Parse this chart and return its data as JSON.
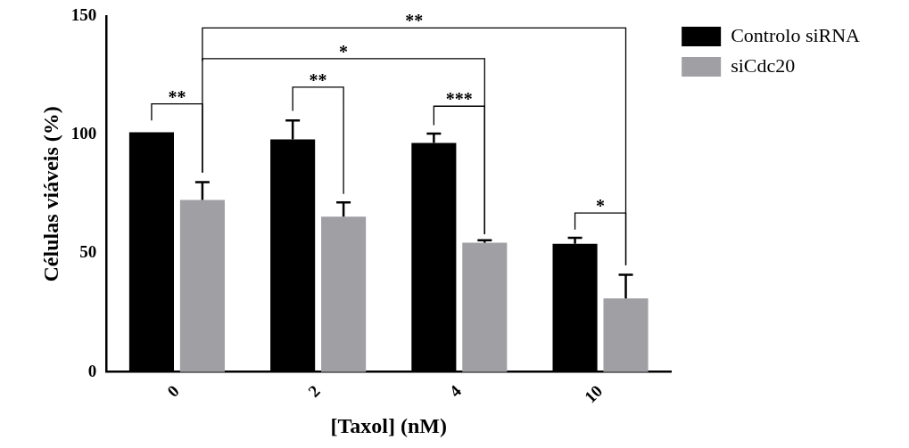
{
  "chart_data": {
    "type": "bar",
    "xlabel": "[Taxol] (nM)",
    "ylabel": "Células viáveis (%)",
    "categories": [
      "0",
      "2",
      "4",
      "10"
    ],
    "series": [
      {
        "name": "Controlo siRNA",
        "color": "#000000",
        "values": [
          101,
          98,
          96.5,
          54
        ],
        "errors": [
          null,
          [
            98,
            106
          ],
          [
            96.5,
            100.5
          ],
          [
            54,
            56.5
          ]
        ]
      },
      {
        "name": "siCdc20",
        "color": "#a0a0a4",
        "values": [
          72.5,
          65.5,
          54.5,
          31
        ],
        "errors": [
          [
            72.5,
            80
          ],
          [
            65.5,
            71.5
          ],
          [
            54.5,
            55.5
          ],
          [
            31,
            41
          ]
        ]
      }
    ],
    "ylim": [
      0,
      150
    ],
    "yticks": [
      0,
      50,
      100,
      150
    ],
    "grid": false,
    "legend": "top right",
    "annotations": [
      "**",
      "**",
      "***",
      "*",
      "*",
      "**"
    ]
  }
}
